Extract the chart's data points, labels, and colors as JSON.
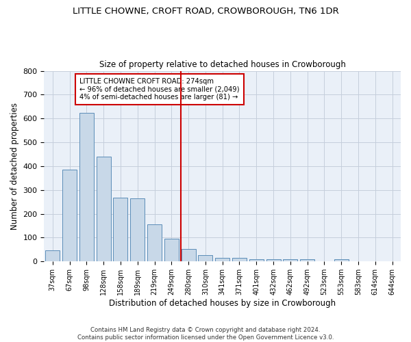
{
  "title": "LITTLE CHOWNE, CROFT ROAD, CROWBOROUGH, TN6 1DR",
  "subtitle": "Size of property relative to detached houses in Crowborough",
  "xlabel": "Distribution of detached houses by size in Crowborough",
  "ylabel": "Number of detached properties",
  "bar_color": "#c8d8e8",
  "bar_edge_color": "#5b8db8",
  "background_color": "#eaf0f8",
  "annotation_text": "LITTLE CHOWNE CROFT ROAD: 274sqm\n← 96% of detached houses are smaller (2,049)\n4% of semi-detached houses are larger (81) →",
  "vline_x_idx": 8,
  "vline_color": "#cc0000",
  "annotation_box_edge_color": "#cc0000",
  "categories": [
    "37sqm",
    "67sqm",
    "98sqm",
    "128sqm",
    "158sqm",
    "189sqm",
    "219sqm",
    "249sqm",
    "280sqm",
    "310sqm",
    "341sqm",
    "371sqm",
    "401sqm",
    "432sqm",
    "462sqm",
    "492sqm",
    "523sqm",
    "553sqm",
    "583sqm",
    "614sqm",
    "644sqm"
  ],
  "values": [
    47,
    385,
    625,
    440,
    267,
    265,
    155,
    97,
    52,
    28,
    15,
    15,
    10,
    10,
    10,
    10,
    0,
    10,
    0,
    0,
    0
  ],
  "ylim": [
    0,
    800
  ],
  "yticks": [
    0,
    100,
    200,
    300,
    400,
    500,
    600,
    700,
    800
  ],
  "footer": "Contains HM Land Registry data © Crown copyright and database right 2024.\nContains public sector information licensed under the Open Government Licence v3.0.",
  "grid_color": "#c5cedc"
}
